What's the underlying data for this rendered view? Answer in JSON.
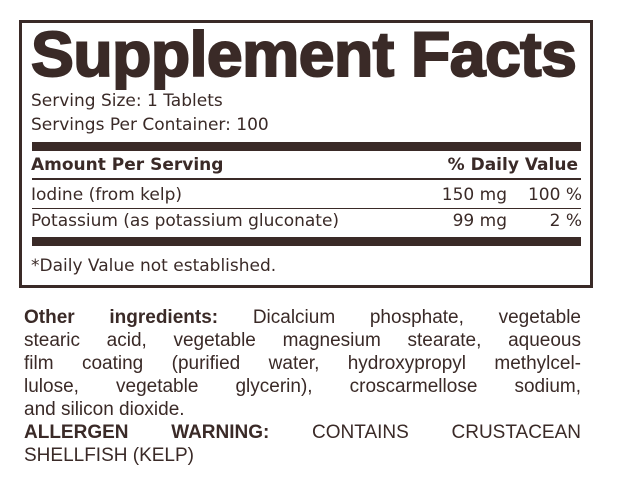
{
  "title": "Supplement Facts",
  "serving_size": "Serving Size: 1 Tablets",
  "servings_per_container": "Servings Per Container: 100",
  "header": {
    "amount": "Amount Per Serving",
    "dv": "% Daily Value"
  },
  "rows": [
    {
      "name": "Iodine (from kelp)",
      "amount": "150 mg",
      "dv": "100 %"
    },
    {
      "name": "Potassium (as potassium gluconate)",
      "amount": "99 mg",
      "dv": "2 %"
    }
  ],
  "footnote": "*Daily Value not established.",
  "other": {
    "label": "Other ingredients:",
    "lines": [
      " Dicalcium phosphate, vegetable",
      "stearic acid, vegetable magnesium stearate, aqueous",
      "film coating (purified water, hydroxypropyl methylcel-",
      "lulose, vegetable glycerin), croscarmellose sodium,",
      "and silicon dioxide."
    ]
  },
  "allergen": {
    "label": "ALLERGEN WARNING:",
    "lines": [
      " CONTAINS CRUSTACEAN",
      "SHELLFISH (KELP)"
    ]
  },
  "colors": {
    "ink": "#3a2a27"
  }
}
